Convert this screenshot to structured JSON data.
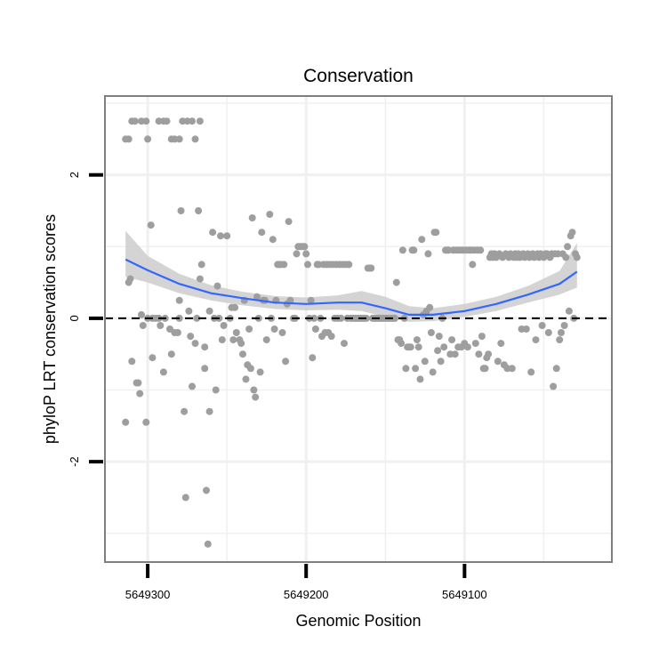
{
  "chart_data": {
    "type": "scatter",
    "title": "Conservation",
    "xlabel": "Genomic Position",
    "ylabel": "phyloP LRT conservation scores",
    "x_reversed": true,
    "xlim": [
      5649327,
      5649007
    ],
    "ylim": [
      -3.4,
      3.1
    ],
    "x_ticks": [
      {
        "value": 5649300,
        "label": "5649300"
      },
      {
        "value": 5649200,
        "label": "5649200"
      },
      {
        "value": 5649100,
        "label": "5649100"
      }
    ],
    "x_minor_gridlines": [
      5649250,
      5649150,
      5649050
    ],
    "y_ticks": [
      {
        "value": 2,
        "label": "2"
      },
      {
        "value": 0,
        "label": "0"
      },
      {
        "value": -2,
        "label": "-2"
      }
    ],
    "y_minor_gridlines": [
      3,
      1,
      -1,
      -3
    ],
    "reference_line": {
      "y": 0,
      "style": "dashed",
      "color": "#000000"
    },
    "colors": {
      "points": "#9e9e9e",
      "smooth": "#3366ff",
      "band": "#cccccc",
      "grid": "#f0f0f0",
      "border": "#7f7f7f"
    },
    "points": [
      [
        5649314,
        2.5
      ],
      [
        5649312,
        2.5
      ],
      [
        5649310,
        2.75
      ],
      [
        5649308,
        2.75
      ],
      [
        5649304,
        2.75
      ],
      [
        5649301,
        2.75
      ],
      [
        5649300,
        2.5
      ],
      [
        5649293,
        2.75
      ],
      [
        5649290,
        2.75
      ],
      [
        5649288,
        2.75
      ],
      [
        5649285,
        2.5
      ],
      [
        5649283,
        2.5
      ],
      [
        5649280,
        2.5
      ],
      [
        5649278,
        2.75
      ],
      [
        5649275,
        2.75
      ],
      [
        5649272,
        2.75
      ],
      [
        5649270,
        2.5
      ],
      [
        5649267,
        2.75
      ],
      [
        5649314,
        -1.45
      ],
      [
        5649312,
        0.5
      ],
      [
        5649311,
        0.55
      ],
      [
        5649310,
        -0.6
      ],
      [
        5649307,
        -0.9
      ],
      [
        5649306,
        -0.9
      ],
      [
        5649305,
        -1.05
      ],
      [
        5649304,
        0.05
      ],
      [
        5649303,
        -0.1
      ],
      [
        5649301,
        -1.45
      ],
      [
        5649300,
        0.0
      ],
      [
        5649298,
        1.3
      ],
      [
        5649297,
        -0.55
      ],
      [
        5649297,
        0.0
      ],
      [
        5649295,
        0.0
      ],
      [
        5649293,
        0.0
      ],
      [
        5649292,
        -0.1
      ],
      [
        5649290,
        -0.75
      ],
      [
        5649289,
        0.0
      ],
      [
        5649286,
        -0.15
      ],
      [
        5649285,
        -0.5
      ],
      [
        5649283,
        -0.2
      ],
      [
        5649281,
        -0.2
      ],
      [
        5649280,
        0.0
      ],
      [
        5649280,
        0.25
      ],
      [
        5649279,
        1.5
      ],
      [
        5649277,
        -1.3
      ],
      [
        5649276,
        -2.5
      ],
      [
        5649274,
        0.1
      ],
      [
        5649273,
        -0.25
      ],
      [
        5649272,
        -0.95
      ],
      [
        5649270,
        -0.35
      ],
      [
        5649269,
        0.0
      ],
      [
        5649268,
        1.5
      ],
      [
        5649267,
        0.55
      ],
      [
        5649266,
        0.75
      ],
      [
        5649264,
        -0.7
      ],
      [
        5649264,
        -0.4
      ],
      [
        5649263,
        -2.4
      ],
      [
        5649262,
        -3.15
      ],
      [
        5649261,
        0.1
      ],
      [
        5649261,
        -1.3
      ],
      [
        5649259,
        1.2
      ],
      [
        5649258,
        0.0
      ],
      [
        5649257,
        -1.0
      ],
      [
        5649256,
        0.45
      ],
      [
        5649255,
        0.0
      ],
      [
        5649254,
        1.15
      ],
      [
        5649253,
        -0.3
      ],
      [
        5649252,
        -0.1
      ],
      [
        5649250,
        1.15
      ],
      [
        5649248,
        0.0
      ],
      [
        5649247,
        0.15
      ],
      [
        5649246,
        -0.3
      ],
      [
        5649245,
        0.15
      ],
      [
        5649244,
        -0.2
      ],
      [
        5649242,
        -0.3
      ],
      [
        5649241,
        -0.35
      ],
      [
        5649240,
        -0.5
      ],
      [
        5649239,
        0.25
      ],
      [
        5649238,
        -0.85
      ],
      [
        5649237,
        -0.65
      ],
      [
        5649236,
        -0.15
      ],
      [
        5649235,
        -0.7
      ],
      [
        5649234,
        1.4
      ],
      [
        5649233,
        -1.0
      ],
      [
        5649232,
        -1.1
      ],
      [
        5649231,
        0.3
      ],
      [
        5649230,
        0.0
      ],
      [
        5649229,
        -0.75
      ],
      [
        5649228,
        1.2
      ],
      [
        5649227,
        0.25
      ],
      [
        5649226,
        0.25
      ],
      [
        5649225,
        -0.3
      ],
      [
        5649223,
        1.45
      ],
      [
        5649222,
        0.0
      ],
      [
        5649221,
        1.1
      ],
      [
        5649220,
        -0.15
      ],
      [
        5649219,
        0.25
      ],
      [
        5649218,
        0.75
      ],
      [
        5649217,
        0.75
      ],
      [
        5649216,
        0.75
      ],
      [
        5649215,
        -0.2
      ],
      [
        5649214,
        0.75
      ],
      [
        5649213,
        -0.6
      ],
      [
        5649212,
        0.2
      ],
      [
        5649211,
        1.35
      ],
      [
        5649210,
        0.25
      ],
      [
        5649208,
        0.0
      ],
      [
        5649207,
        0.0
      ],
      [
        5649206,
        0.9
      ],
      [
        5649205,
        1.0
      ],
      [
        5649204,
        1.0
      ],
      [
        5649203,
        1.0
      ],
      [
        5649202,
        1.0
      ],
      [
        5649201,
        1.0
      ],
      [
        5649200,
        0.9
      ],
      [
        5649199,
        0.75
      ],
      [
        5649198,
        0.0
      ],
      [
        5649197,
        0.25
      ],
      [
        5649196,
        -0.55
      ],
      [
        5649195,
        0.0
      ],
      [
        5649194,
        -0.15
      ],
      [
        5649193,
        0.75
      ],
      [
        5649192,
        0.75
      ],
      [
        5649191,
        0.0
      ],
      [
        5649190,
        -0.25
      ],
      [
        5649189,
        0.75
      ],
      [
        5649188,
        -0.2
      ],
      [
        5649187,
        0.75
      ],
      [
        5649186,
        -0.2
      ],
      [
        5649185,
        0.75
      ],
      [
        5649184,
        -0.25
      ],
      [
        5649183,
        0.75
      ],
      [
        5649182,
        0.0
      ],
      [
        5649181,
        0.75
      ],
      [
        5649180,
        0.0
      ],
      [
        5649179,
        0.75
      ],
      [
        5649178,
        0.0
      ],
      [
        5649177,
        0.75
      ],
      [
        5649176,
        -0.35
      ],
      [
        5649175,
        0.75
      ],
      [
        5649174,
        0.0
      ],
      [
        5649173,
        0.75
      ],
      [
        5649172,
        0.0
      ],
      [
        5649171,
        0.0
      ],
      [
        5649170,
        0.0
      ],
      [
        5649169,
        0.0
      ],
      [
        5649168,
        0.0
      ],
      [
        5649167,
        0.0
      ],
      [
        5649166,
        0.0
      ],
      [
        5649165,
        0.0
      ],
      [
        5649164,
        0.0
      ],
      [
        5649163,
        0.0
      ],
      [
        5649162,
        0.0
      ],
      [
        5649161,
        0.7
      ],
      [
        5649160,
        0.7
      ],
      [
        5649159,
        0.7
      ],
      [
        5649158,
        0.0
      ],
      [
        5649157,
        0.0
      ],
      [
        5649156,
        0.0
      ],
      [
        5649155,
        0.0
      ],
      [
        5649154,
        0.0
      ],
      [
        5649153,
        0.0
      ],
      [
        5649152,
        0.0
      ],
      [
        5649151,
        0.0
      ],
      [
        5649150,
        0.0
      ],
      [
        5649149,
        0.0
      ],
      [
        5649148,
        0.0
      ],
      [
        5649147,
        0.0
      ],
      [
        5649146,
        0.0
      ],
      [
        5649145,
        0.0
      ],
      [
        5649144,
        0.0
      ],
      [
        5649143,
        0.5
      ],
      [
        5649142,
        -0.3
      ],
      [
        5649141,
        -0.3
      ],
      [
        5649140,
        -0.35
      ],
      [
        5649139,
        0.95
      ],
      [
        5649138,
        0.0
      ],
      [
        5649137,
        -0.7
      ],
      [
        5649136,
        -0.4
      ],
      [
        5649135,
        -0.4
      ],
      [
        5649134,
        -0.4
      ],
      [
        5649133,
        0.95
      ],
      [
        5649132,
        0.95
      ],
      [
        5649131,
        -0.7
      ],
      [
        5649130,
        -0.3
      ],
      [
        5649129,
        -0.4
      ],
      [
        5649128,
        -0.85
      ],
      [
        5649127,
        1.1
      ],
      [
        5649126,
        0.05
      ],
      [
        5649125,
        -0.6
      ],
      [
        5649124,
        0.1
      ],
      [
        5649123,
        0.9
      ],
      [
        5649122,
        0.15
      ],
      [
        5649121,
        -0.2
      ],
      [
        5649120,
        -0.75
      ],
      [
        5649119,
        1.2
      ],
      [
        5649118,
        1.2
      ],
      [
        5649117,
        -0.45
      ],
      [
        5649116,
        -0.25
      ],
      [
        5649115,
        -0.6
      ],
      [
        5649114,
        0.0
      ],
      [
        5649113,
        -0.4
      ],
      [
        5649112,
        0.95
      ],
      [
        5649111,
        0.95
      ],
      [
        5649110,
        0.95
      ],
      [
        5649109,
        -0.5
      ],
      [
        5649108,
        -0.3
      ],
      [
        5649107,
        0.95
      ],
      [
        5649106,
        -0.5
      ],
      [
        5649105,
        0.95
      ],
      [
        5649104,
        -0.4
      ],
      [
        5649103,
        0.95
      ],
      [
        5649102,
        -0.4
      ],
      [
        5649101,
        0.95
      ],
      [
        5649100,
        -0.35
      ],
      [
        5649099,
        0.95
      ],
      [
        5649098,
        -0.4
      ],
      [
        5649097,
        0.95
      ],
      [
        5649096,
        0.95
      ],
      [
        5649095,
        0.75
      ],
      [
        5649094,
        0.95
      ],
      [
        5649093,
        -0.35
      ],
      [
        5649092,
        0.95
      ],
      [
        5649091,
        -0.5
      ],
      [
        5649090,
        0.95
      ],
      [
        5649089,
        -0.25
      ],
      [
        5649088,
        -0.7
      ],
      [
        5649087,
        -0.7
      ],
      [
        5649086,
        -0.55
      ],
      [
        5649085,
        -0.5
      ],
      [
        5649084,
        0.85
      ],
      [
        5649083,
        0.9
      ],
      [
        5649082,
        0.85
      ],
      [
        5649081,
        0.9
      ],
      [
        5649080,
        0.85
      ],
      [
        5649079,
        -0.6
      ],
      [
        5649078,
        0.9
      ],
      [
        5649077,
        -0.35
      ],
      [
        5649076,
        0.85
      ],
      [
        5649075,
        -0.65
      ],
      [
        5649074,
        0.9
      ],
      [
        5649073,
        -0.7
      ],
      [
        5649072,
        0.85
      ],
      [
        5649071,
        0.9
      ],
      [
        5649070,
        -0.7
      ],
      [
        5649069,
        0.85
      ],
      [
        5649068,
        0.9
      ],
      [
        5649067,
        0.85
      ],
      [
        5649066,
        0.9
      ],
      [
        5649065,
        0.85
      ],
      [
        5649064,
        -0.15
      ],
      [
        5649063,
        0.9
      ],
      [
        5649062,
        0.85
      ],
      [
        5649061,
        -0.15
      ],
      [
        5649060,
        0.9
      ],
      [
        5649059,
        0.85
      ],
      [
        5649058,
        -0.75
      ],
      [
        5649057,
        0.9
      ],
      [
        5649056,
        0.85
      ],
      [
        5649055,
        -0.3
      ],
      [
        5649054,
        0.9
      ],
      [
        5649053,
        0.85
      ],
      [
        5649052,
        0.9
      ],
      [
        5649051,
        -0.1
      ],
      [
        5649050,
        0.85
      ],
      [
        5649049,
        0.9
      ],
      [
        5649048,
        0.9
      ],
      [
        5649047,
        -0.2
      ],
      [
        5649046,
        0.85
      ],
      [
        5649045,
        0.9
      ],
      [
        5649044,
        -0.95
      ],
      [
        5649043,
        0.9
      ],
      [
        5649042,
        -0.7
      ],
      [
        5649041,
        0.9
      ],
      [
        5649040,
        -0.3
      ],
      [
        5649039,
        -0.2
      ],
      [
        5649038,
        0.9
      ],
      [
        5649037,
        -0.1
      ],
      [
        5649036,
        0.85
      ],
      [
        5649035,
        1.0
      ],
      [
        5649034,
        0.1
      ],
      [
        5649033,
        1.15
      ],
      [
        5649032,
        1.2
      ],
      [
        5649031,
        0.0
      ],
      [
        5649030,
        0.9
      ],
      [
        5649029,
        0.85
      ]
    ],
    "smooth_line": [
      {
        "x": 5649314,
        "y": 0.82,
        "lo": 0.58,
        "hi": 1.22
      },
      {
        "x": 5649300,
        "y": 0.67,
        "lo": 0.5,
        "hi": 0.87
      },
      {
        "x": 5649280,
        "y": 0.48,
        "lo": 0.35,
        "hi": 0.62
      },
      {
        "x": 5649260,
        "y": 0.35,
        "lo": 0.25,
        "hi": 0.46
      },
      {
        "x": 5649240,
        "y": 0.28,
        "lo": 0.18,
        "hi": 0.37
      },
      {
        "x": 5649220,
        "y": 0.22,
        "lo": 0.13,
        "hi": 0.31
      },
      {
        "x": 5649200,
        "y": 0.2,
        "lo": 0.11,
        "hi": 0.29
      },
      {
        "x": 5649180,
        "y": 0.22,
        "lo": 0.12,
        "hi": 0.32
      },
      {
        "x": 5649165,
        "y": 0.22,
        "lo": 0.1,
        "hi": 0.38
      },
      {
        "x": 5649150,
        "y": 0.14,
        "lo": 0.02,
        "hi": 0.3
      },
      {
        "x": 5649135,
        "y": 0.05,
        "lo": -0.05,
        "hi": 0.17
      },
      {
        "x": 5649120,
        "y": 0.05,
        "lo": -0.04,
        "hi": 0.14
      },
      {
        "x": 5649100,
        "y": 0.1,
        "lo": 0.02,
        "hi": 0.2
      },
      {
        "x": 5649080,
        "y": 0.2,
        "lo": 0.1,
        "hi": 0.3
      },
      {
        "x": 5649060,
        "y": 0.33,
        "lo": 0.22,
        "hi": 0.45
      },
      {
        "x": 5649040,
        "y": 0.48,
        "lo": 0.33,
        "hi": 0.66
      },
      {
        "x": 5649029,
        "y": 0.65,
        "lo": 0.43,
        "hi": 1.05
      }
    ]
  }
}
